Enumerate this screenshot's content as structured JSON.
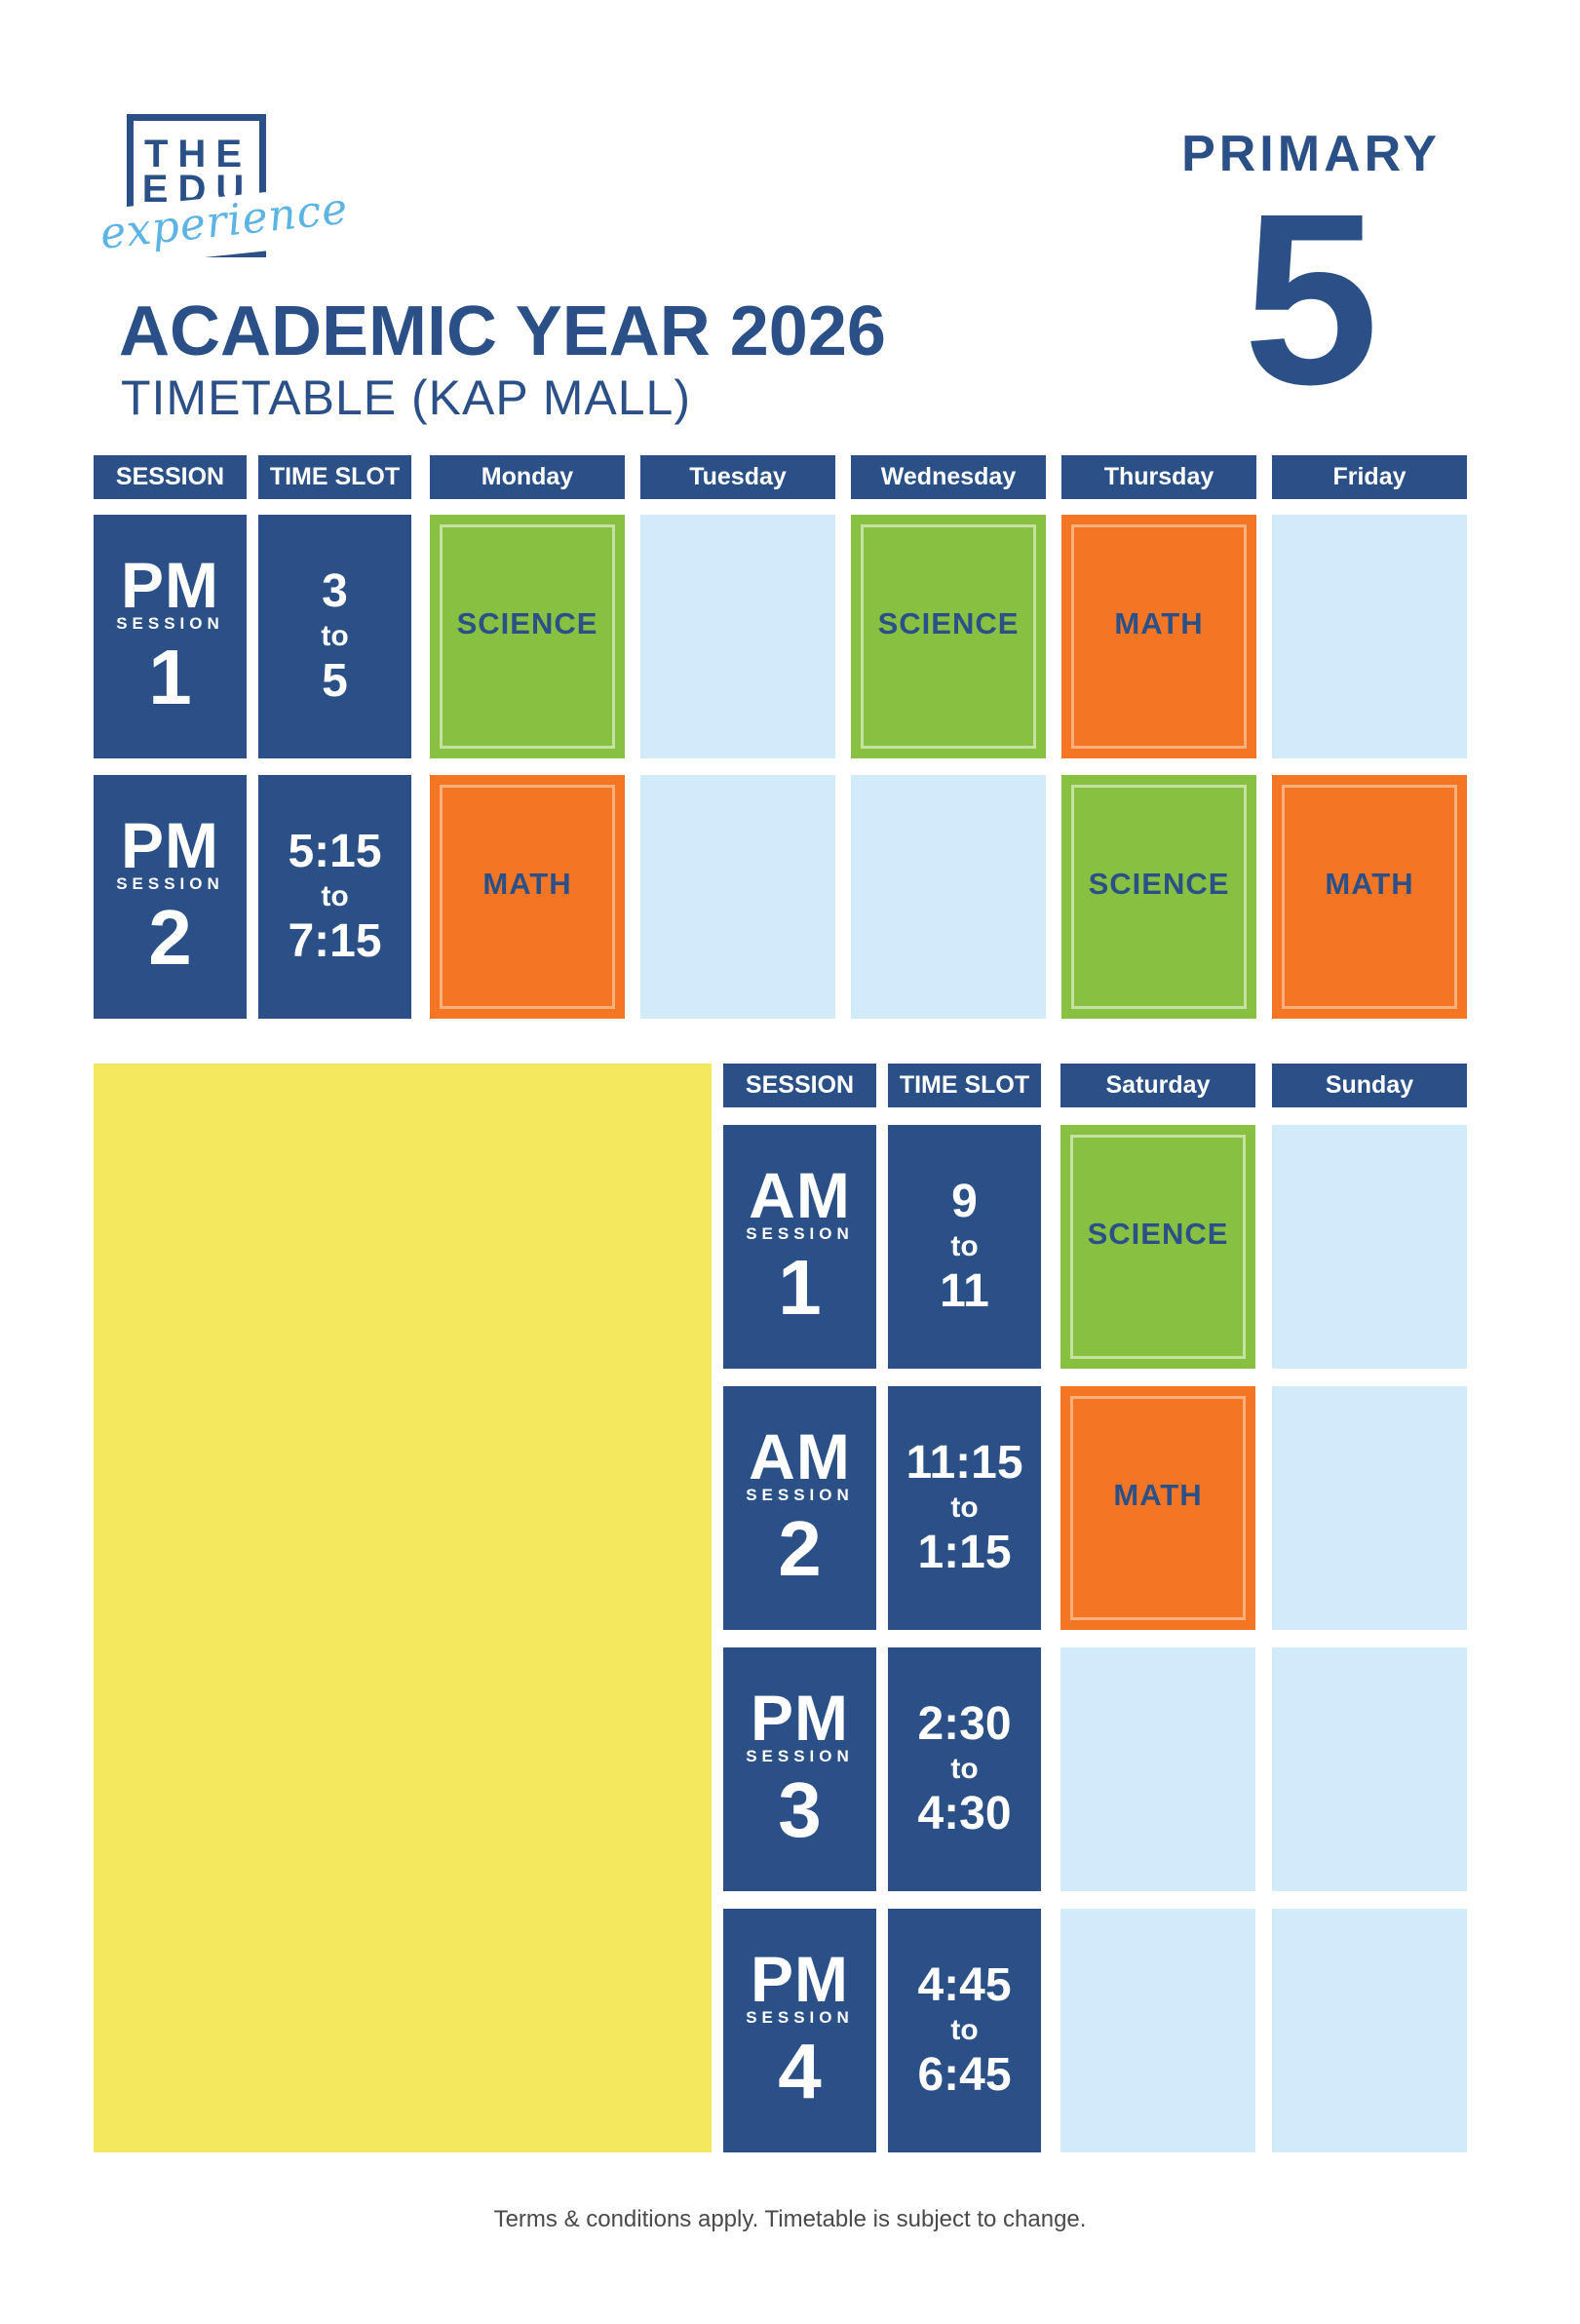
{
  "logo": {
    "line1": "THE",
    "line2": "EDU",
    "script": "experience"
  },
  "title": "ACADEMIC YEAR 2026",
  "subtitle": "TIMETABLE (KAP MALL)",
  "level": {
    "label": "PRIMARY",
    "number": "5"
  },
  "weekday_table": {
    "headers": [
      "SESSION",
      "TIME SLOT",
      "Monday",
      "Tuesday",
      "Wednesday",
      "Thursday",
      "Friday"
    ],
    "rows": [
      {
        "period": "PM",
        "session_word": "SESSION",
        "number": "1",
        "time_start": "3",
        "time_to": "to",
        "time_end": "5",
        "cells": [
          "SCIENCE",
          "",
          "SCIENCE",
          "MATH",
          ""
        ]
      },
      {
        "period": "PM",
        "session_word": "SESSION",
        "number": "2",
        "time_start": "5:15",
        "time_to": "to",
        "time_end": "7:15",
        "cells": [
          "MATH",
          "",
          "",
          "SCIENCE",
          "MATH"
        ]
      }
    ]
  },
  "weekend_table": {
    "headers": [
      "SESSION",
      "TIME SLOT",
      "Saturday",
      "Sunday"
    ],
    "rows": [
      {
        "period": "AM",
        "session_word": "SESSION",
        "number": "1",
        "time_start": "9",
        "time_to": "to",
        "time_end": "11",
        "cells": [
          "SCIENCE",
          ""
        ]
      },
      {
        "period": "AM",
        "session_word": "SESSION",
        "number": "2",
        "time_start": "11:15",
        "time_to": "to",
        "time_end": "1:15",
        "cells": [
          "MATH",
          ""
        ]
      },
      {
        "period": "PM",
        "session_word": "SESSION",
        "number": "3",
        "time_start": "2:30",
        "time_to": "to",
        "time_end": "4:30",
        "cells": [
          "",
          ""
        ]
      },
      {
        "period": "PM",
        "session_word": "SESSION",
        "number": "4",
        "time_start": "4:45",
        "time_to": "to",
        "time_end": "6:45",
        "cells": [
          "",
          ""
        ]
      }
    ]
  },
  "colors": {
    "navy": "#2b5088",
    "science": "#88c142",
    "math": "#f47625",
    "empty": "#d1ebfb",
    "yellow": "#f4e95e"
  },
  "footer": "Terms & conditions apply. Timetable is subject to change."
}
